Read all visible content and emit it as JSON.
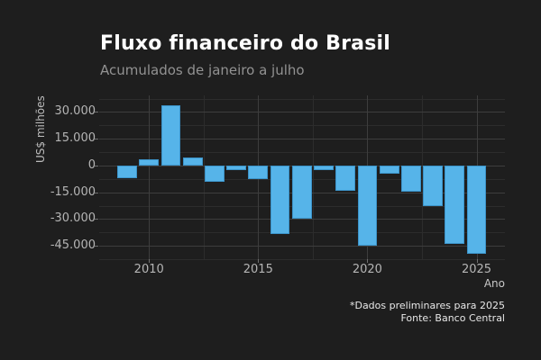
{
  "header": {
    "title": "Fluxo financeiro do Brasil",
    "subtitle": "Acumulados de janeiro a julho"
  },
  "footnote": {
    "line1": "*Dados preliminares para 2025",
    "line2": "Fonte: Banco Central"
  },
  "colors": {
    "background": "#1e1e1e",
    "bar_fill": "#56b4e9",
    "bar_border": "#3b93c9",
    "grid_major": "#3d3d3d",
    "grid_minor": "#2c2c2c",
    "title_text": "#ffffff",
    "subtitle_text": "#929292",
    "tick_text": "#b5b5b5",
    "footnote_text": "#e8e8e8"
  },
  "chart_data": {
    "type": "bar",
    "title": "Fluxo financeiro do Brasil",
    "subtitle": "Acumulados de janeiro a julho",
    "xlabel": "Ano",
    "ylabel": "US$ milhões",
    "legend": "none",
    "grid": true,
    "x": [
      2009,
      2010,
      2011,
      2012,
      2013,
      2014,
      2015,
      2016,
      2017,
      2018,
      2019,
      2020,
      2021,
      2022,
      2023,
      2024,
      2025
    ],
    "values": [
      -6900,
      3500,
      33500,
      4500,
      -9200,
      -2500,
      -7500,
      -38400,
      -29800,
      -2700,
      -14300,
      -44700,
      -4700,
      -14800,
      -22700,
      -43700,
      -49300
    ],
    "xlim": [
      2007.72,
      2026.3
    ],
    "ylim": [
      -52500,
      39300
    ],
    "bar_width_years": 0.9,
    "y_major_ticks": [
      {
        "value": 30000,
        "label": "30.000"
      },
      {
        "value": 15000,
        "label": "15.000"
      },
      {
        "value": 0,
        "label": "0"
      },
      {
        "value": -15000,
        "label": "-15.000"
      },
      {
        "value": -30000,
        "label": "-30.000"
      },
      {
        "value": -45000,
        "label": "-45.000"
      }
    ],
    "y_minor_ticks": [
      37500,
      22500,
      7500,
      -7500,
      -22500,
      -37500,
      -52500
    ],
    "x_major_ticks": [
      {
        "value": 2010,
        "label": "2010"
      },
      {
        "value": 2015,
        "label": "2015"
      },
      {
        "value": 2020,
        "label": "2020"
      },
      {
        "value": 2025,
        "label": "2025"
      }
    ],
    "x_minor_ticks": [
      2012.5,
      2017.5,
      2022.5
    ]
  }
}
